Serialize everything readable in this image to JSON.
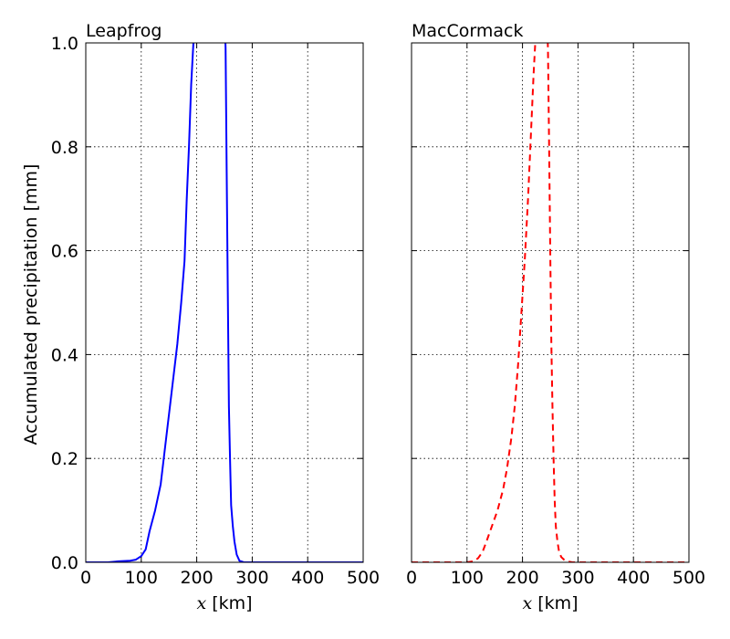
{
  "chart_data": [
    {
      "type": "line",
      "title": "Leapfrog",
      "xlabel_var": "x",
      "xlabel_unit": " [km]",
      "ylabel": "Accumulated precipitation [mm]",
      "xlim": [
        0,
        500
      ],
      "ylim": [
        0,
        1.0
      ],
      "xticks": [
        "0",
        "100",
        "200",
        "300",
        "400",
        "500"
      ],
      "yticks": [
        "0.0",
        "0.2",
        "0.4",
        "0.6",
        "0.8",
        "1.0"
      ],
      "grid": true,
      "series": [
        {
          "color": "#0000ff",
          "style": "solid",
          "x": [
            0,
            40,
            60,
            80,
            90,
            100,
            108,
            115,
            125,
            135,
            145,
            155,
            165,
            172,
            178,
            182,
            186,
            190,
            194,
            197,
            250,
            252,
            254,
            256,
            258,
            260,
            262,
            265,
            268,
            272,
            277,
            285,
            300,
            400,
            500
          ],
          "y": [
            0,
            0,
            0.002,
            0.003,
            0.005,
            0.012,
            0.025,
            0.06,
            0.1,
            0.15,
            0.24,
            0.33,
            0.42,
            0.5,
            0.58,
            0.7,
            0.8,
            0.92,
            1.0,
            1.06,
            1.06,
            0.99,
            0.75,
            0.52,
            0.3,
            0.2,
            0.11,
            0.07,
            0.04,
            0.015,
            0.003,
            0,
            0,
            0,
            0
          ]
        }
      ]
    },
    {
      "type": "line",
      "title": "MacCormack",
      "xlabel_var": "x",
      "xlabel_unit": " [km]",
      "xlim": [
        0,
        500
      ],
      "ylim": [
        0,
        1.0
      ],
      "xticks": [
        "0",
        "100",
        "200",
        "300",
        "400",
        "500"
      ],
      "grid": true,
      "series": [
        {
          "color": "#ff0000",
          "style": "dashed",
          "x": [
            0,
            100,
            112,
            120,
            128,
            135,
            145,
            155,
            165,
            172,
            180,
            186,
            192,
            198,
            204,
            210,
            215,
            220,
            224,
            228,
            244,
            246,
            248,
            250,
            252,
            254,
            256,
            258,
            260,
            263,
            266,
            270,
            275,
            280,
            290,
            300,
            400,
            500
          ],
          "y": [
            0,
            0,
            0.002,
            0.008,
            0.02,
            0.04,
            0.07,
            0.1,
            0.14,
            0.18,
            0.24,
            0.3,
            0.38,
            0.48,
            0.58,
            0.7,
            0.82,
            0.94,
            1.02,
            1.08,
            1.08,
            0.98,
            0.8,
            0.6,
            0.42,
            0.3,
            0.2,
            0.12,
            0.07,
            0.04,
            0.02,
            0.01,
            0.005,
            0.002,
            0,
            0,
            0,
            0
          ]
        }
      ]
    }
  ]
}
